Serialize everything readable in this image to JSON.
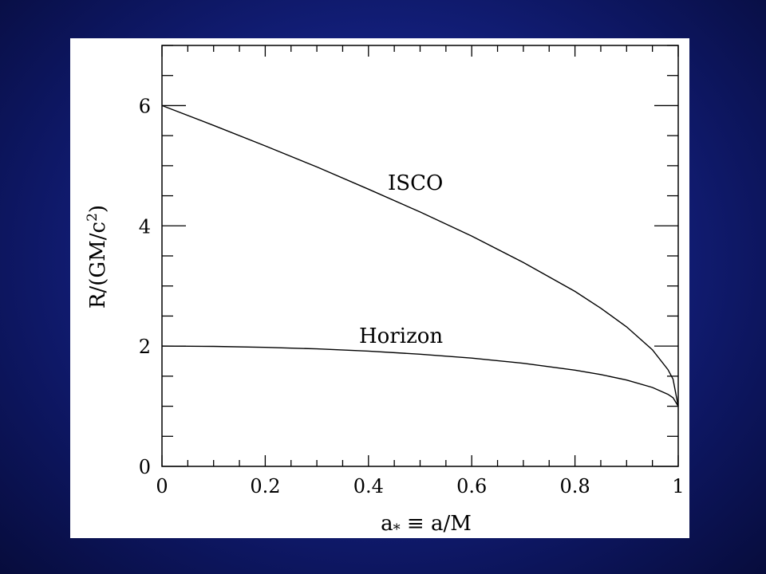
{
  "slide": {
    "background_color": "#16248a"
  },
  "chart_data": {
    "type": "line",
    "title": "",
    "xlabel_main": "a",
    "xlabel_sub": "*",
    "xlabel_rest": " ≡ a/M",
    "ylabel_main": "R/(GM/c",
    "ylabel_sup": "2",
    "ylabel_end": ")",
    "xlim": [
      0,
      1
    ],
    "ylim": [
      0,
      7
    ],
    "x_ticks": [
      "0",
      "0.2",
      "0.4",
      "0.6",
      "0.8",
      "1"
    ],
    "x_tick_values": [
      0,
      0.2,
      0.4,
      0.6,
      0.8,
      1
    ],
    "y_ticks": [
      "0",
      "2",
      "4",
      "6"
    ],
    "y_tick_values": [
      0,
      2,
      4,
      6
    ],
    "grid": false,
    "series": [
      {
        "name": "ISCO",
        "x": [
          0,
          0.1,
          0.2,
          0.3,
          0.4,
          0.5,
          0.6,
          0.7,
          0.8,
          0.85,
          0.9,
          0.95,
          0.98,
          0.99,
          1.0
        ],
        "y": [
          6.0,
          5.67,
          5.33,
          4.98,
          4.61,
          4.23,
          3.83,
          3.39,
          2.91,
          2.63,
          2.32,
          1.94,
          1.61,
          1.45,
          1.0
        ]
      },
      {
        "name": "Horizon",
        "x": [
          0,
          0.1,
          0.2,
          0.3,
          0.4,
          0.5,
          0.6,
          0.7,
          0.8,
          0.85,
          0.9,
          0.95,
          0.98,
          0.99,
          1.0
        ],
        "y": [
          2.0,
          1.995,
          1.98,
          1.954,
          1.917,
          1.866,
          1.8,
          1.714,
          1.6,
          1.527,
          1.436,
          1.312,
          1.199,
          1.141,
          1.0
        ]
      }
    ]
  }
}
